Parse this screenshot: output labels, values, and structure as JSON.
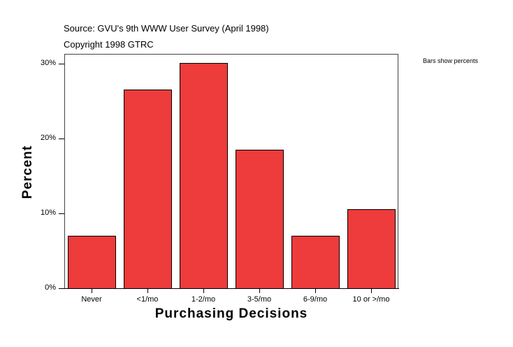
{
  "header": {
    "source": "Source: GVU's 9th WWW User Survey (April 1998)",
    "copyright": "Copyright 1998 GTRC"
  },
  "legend_note": "Bars show percents",
  "chart_data": {
    "type": "bar",
    "title": "Source: GVU's 9th WWW User Survey (April 1998)",
    "subtitle": "Copyright 1998 GTRC",
    "xlabel": "Purchasing Decisions",
    "ylabel": "Percent",
    "categories": [
      "Never",
      "<1/mo",
      "1-2/mo",
      "3-5/mo",
      "6-9/mo",
      "10 or >/mo"
    ],
    "values": [
      7.0,
      26.5,
      30.1,
      18.5,
      7.0,
      10.6
    ],
    "ylim": [
      0,
      31.5
    ],
    "yticks": [
      "0%",
      "10%",
      "20%",
      "30%"
    ],
    "grid": false,
    "annotation": "Bars show percents",
    "bar_color": "#ee3b3b"
  }
}
